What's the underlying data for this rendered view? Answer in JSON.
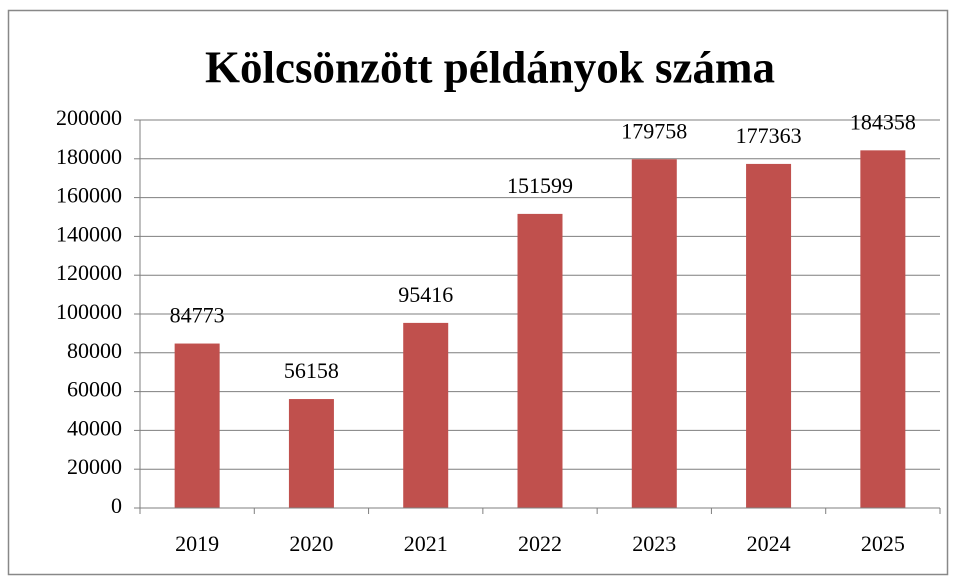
{
  "chart_data": {
    "type": "bar",
    "title": "Kölcsönzött példányok száma",
    "categories": [
      "2019",
      "2020",
      "2021",
      "2022",
      "2023",
      "2024",
      "2025"
    ],
    "values": [
      84773,
      56158,
      95416,
      151599,
      179758,
      177363,
      184358
    ],
    "color": "#c0504d",
    "ylim": [
      0,
      200000
    ],
    "yticks": [
      0,
      20000,
      40000,
      60000,
      80000,
      100000,
      120000,
      140000,
      160000,
      180000,
      200000
    ],
    "grid": true
  }
}
